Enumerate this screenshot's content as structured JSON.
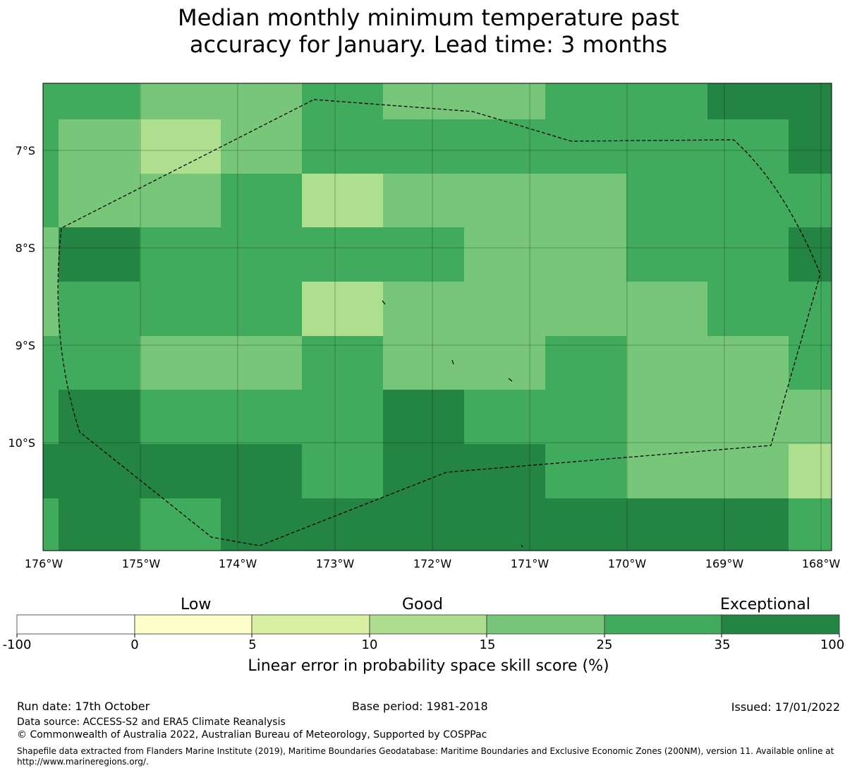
{
  "title": {
    "line1": "Median monthly minimum temperature past",
    "line2": "accuracy for January. Lead time: 3 months"
  },
  "map": {
    "lat_labels": [
      "7°S",
      "8°S",
      "9°S",
      "10°S"
    ],
    "lon_labels": [
      "176°W",
      "175°W",
      "174°W",
      "173°W",
      "172°W",
      "171°W",
      "170°W",
      "169°W",
      "168°W"
    ],
    "grid_cells": [
      [
        "35",
        "35",
        "25",
        "25",
        "35",
        "25",
        "25",
        "35",
        "35",
        "50",
        "50"
      ],
      [
        "35",
        "25",
        "15",
        "25",
        "35",
        "35",
        "35",
        "35",
        "35",
        "35",
        "50"
      ],
      [
        "35",
        "25",
        "25",
        "35",
        "15",
        "25",
        "25",
        "25",
        "35",
        "35",
        "35"
      ],
      [
        "25",
        "50",
        "35",
        "35",
        "35",
        "35",
        "25",
        "25",
        "35",
        "35",
        "50"
      ],
      [
        "25",
        "35",
        "35",
        "35",
        "15",
        "25",
        "25",
        "25",
        "25",
        "35",
        "35"
      ],
      [
        "35",
        "35",
        "25",
        "25",
        "35",
        "25",
        "25",
        "35",
        "25",
        "25",
        "35"
      ],
      [
        "35",
        "50",
        "35",
        "35",
        "35",
        "50",
        "35",
        "35",
        "25",
        "25",
        "25"
      ],
      [
        "50",
        "50",
        "50",
        "50",
        "35",
        "50",
        "50",
        "35",
        "25",
        "25",
        "15"
      ],
      [
        "35",
        "50",
        "35",
        "50",
        "50",
        "50",
        "50",
        "50",
        "50",
        "50",
        "35"
      ]
    ],
    "skill_colors": {
      "15": "#addf8e",
      "25": "#78c679",
      "35": "#41ab5d",
      "50": "#238443"
    }
  },
  "colorbar": {
    "categories": [
      "Low",
      "Good",
      "Exceptional"
    ],
    "ticks": [
      "-100",
      "0",
      "5",
      "10",
      "15",
      "25",
      "35",
      "100"
    ],
    "colors": [
      "#ffffff",
      "#ffffcc",
      "#d9f0a3",
      "#addd8e",
      "#78c679",
      "#41ab5d",
      "#238443"
    ],
    "label": "Linear error in probability space skill score (%)"
  },
  "footer": {
    "run_date": "Run date: 17th October",
    "base_period": "Base period: 1981-2018",
    "issued": "Issued: 17/01/2022",
    "data_source": "Data source: ACCESS-S2 and ERA5 Climate Reanalysis",
    "copyright": "© Commonwealth of Australia 2022, Australian Bureau of Meteorology, Supported by COSPPac",
    "shapefile_note": "Shapefile data extracted from Flanders Marine Institute (2019), Maritime Boundaries Geodatabase: Maritime Boundaries and Exclusive Economic Zones (200NM), version 11. Available online at http://www.marineregions.org/."
  }
}
